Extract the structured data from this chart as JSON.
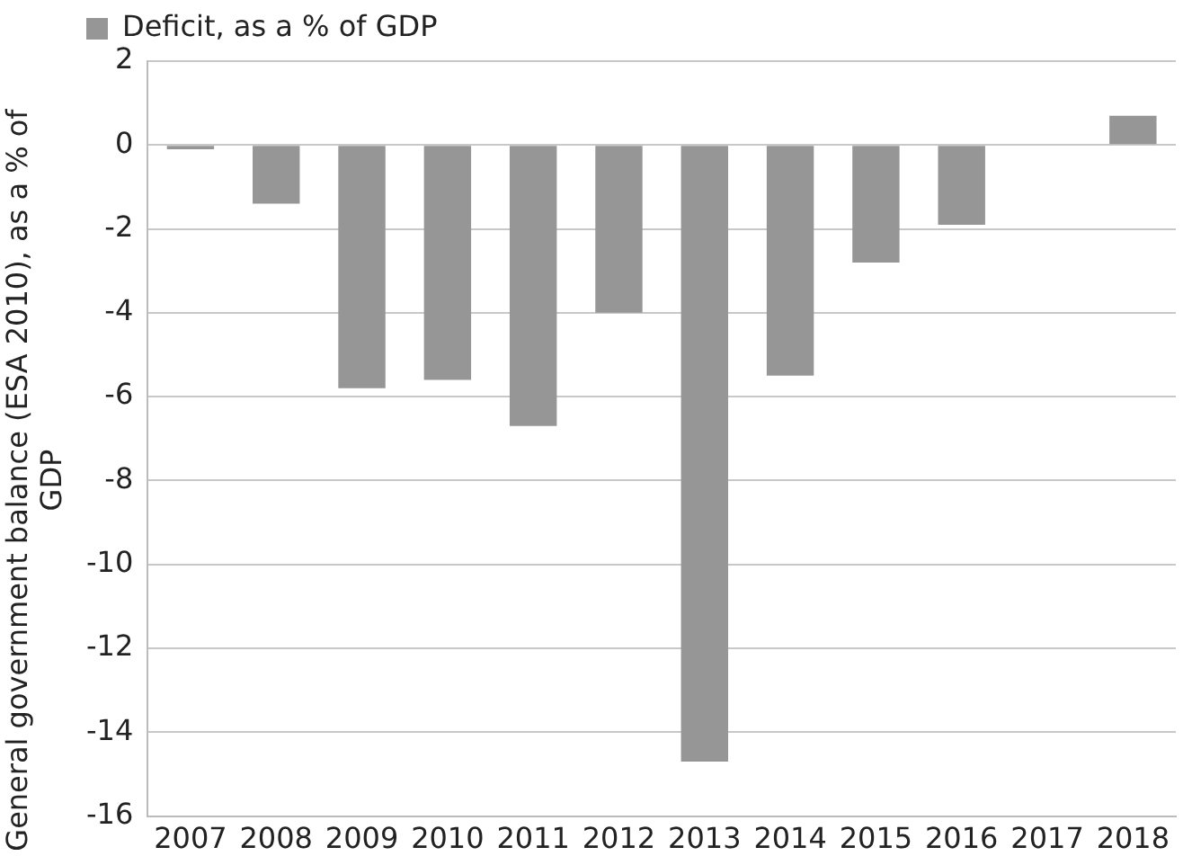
{
  "chart_data": {
    "type": "bar",
    "ylabel": "General government balance (ESA 2010), as a % of GDP",
    "categories": [
      "2007",
      "2008",
      "2009",
      "2010",
      "2011",
      "2012",
      "2013",
      "2014",
      "2015",
      "2016",
      "2017",
      "2018"
    ],
    "series": [
      {
        "name": "Deficit, as a % of GDP",
        "color": "#969696",
        "values": [
          -0.1,
          -1.4,
          -5.8,
          -5.6,
          -6.7,
          -4.0,
          -14.7,
          -5.5,
          -2.8,
          -1.9,
          null,
          0.7
        ]
      }
    ],
    "ylim": [
      -16,
      2
    ],
    "yticks": [
      -16,
      -14,
      -12,
      -10,
      -8,
      -6,
      -4,
      -2,
      0,
      2
    ],
    "grid": "y",
    "legend": "top left"
  }
}
